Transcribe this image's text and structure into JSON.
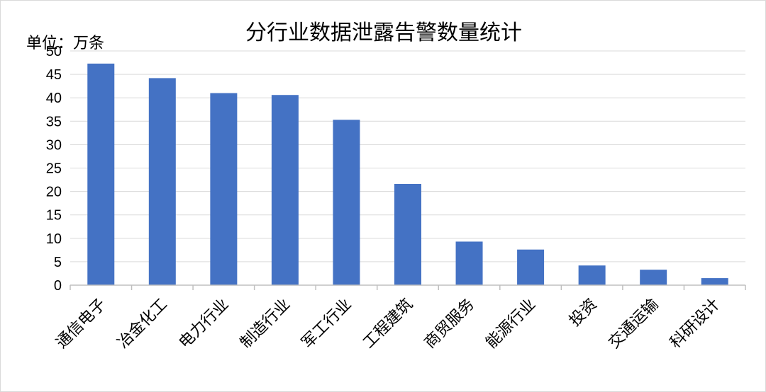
{
  "chart_data": {
    "type": "bar",
    "title": "分行业数据泄露告警数量统计",
    "unit_label": "单位：万条",
    "categories": [
      "通信电子",
      "冶金化工",
      "电力行业",
      "制造行业",
      "军工行业",
      "工程建筑",
      "商贸服务",
      "能源行业",
      "投资",
      "交通运输",
      "科研设计"
    ],
    "values": [
      47.3,
      44.2,
      41.0,
      40.6,
      35.3,
      21.6,
      9.3,
      7.6,
      4.2,
      3.3,
      1.5
    ],
    "ylim": [
      0,
      50
    ],
    "yticks": [
      0,
      5,
      10,
      15,
      20,
      25,
      30,
      35,
      40,
      45,
      50
    ],
    "grid": true,
    "bar_color": "#4472C4"
  }
}
